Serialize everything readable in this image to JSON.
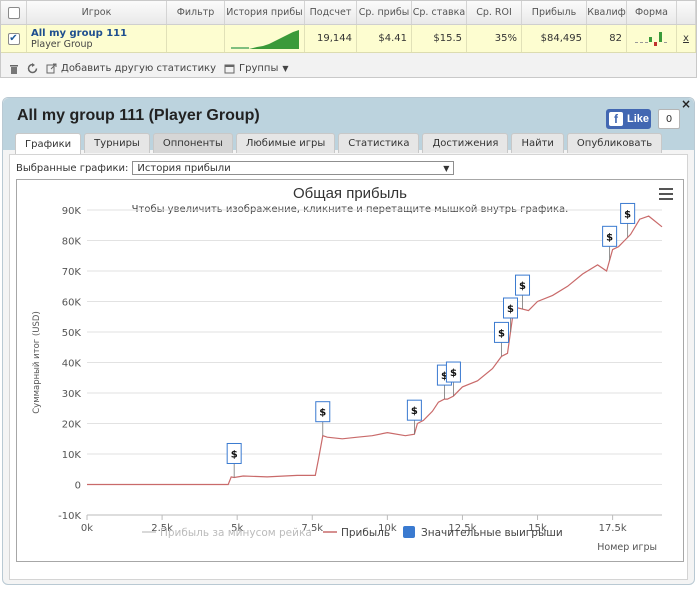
{
  "table": {
    "headers": [
      "Игрок",
      "Фильтр",
      "История прибы",
      "Подсчет",
      "Ср. прибы",
      "Ср. ставка",
      "Ср. ROI",
      "Прибыль",
      "Квалиф",
      "Форма"
    ],
    "row": {
      "player_name": "All my group 111",
      "player_group": "Player Group",
      "filter": "",
      "count": "19,144",
      "avg_profit": "$4.41",
      "avg_stake": "$15.5",
      "avg_roi": "35%",
      "profit": "$84,495",
      "qualif": "82",
      "remove": "x"
    },
    "toolbar": {
      "add_stat": "Добавить другую статистику",
      "groups": "Группы"
    }
  },
  "panel": {
    "title": "All my group 111 (Player Group)",
    "like_label": "Like",
    "like_count": "0",
    "close": "×",
    "tabs": [
      "Графики",
      "Турниры",
      "Оппоненты",
      "Любимые игры",
      "Статистика",
      "Достижения",
      "Найти",
      "Опубликовать"
    ],
    "active_tab": "Графики",
    "select_label": "Выбранные графики:",
    "select_value": "История прибыли"
  },
  "chart_data": {
    "type": "line",
    "title": "Общая прибыль",
    "subtitle": "Чтобы увеличить изображение, кликните и перетащите мышкой внутрь графика.",
    "xlabel": "Номер игры",
    "ylabel": "Суммарный итог (USD)",
    "x_ticks": [
      "0k",
      "2.5k",
      "5k",
      "7.5k",
      "10k",
      "12.5k",
      "15k",
      "17.5k"
    ],
    "y_ticks": [
      "-10K",
      "0",
      "10K",
      "20K",
      "30K",
      "40K",
      "50K",
      "60K",
      "70K",
      "80K",
      "90K"
    ],
    "xlim": [
      0,
      19144
    ],
    "ylim": [
      -10000,
      90000
    ],
    "series": [
      {
        "name": "Прибыль",
        "color": "#c96a6a",
        "x": [
          0,
          1000,
          2000,
          3000,
          4000,
          4700,
          4800,
          4900,
          5200,
          6000,
          7000,
          7600,
          7700,
          7850,
          8000,
          8500,
          9000,
          9500,
          10000,
          10600,
          10900,
          11000,
          11200,
          11500,
          11700,
          11900,
          12000,
          12200,
          12500,
          13000,
          13500,
          13800,
          14000,
          14100,
          14200,
          14300,
          14700,
          15000,
          15500,
          16000,
          16500,
          17000,
          17300,
          17500,
          17700,
          17900,
          18100,
          18400,
          18700,
          19144
        ],
        "y": [
          0,
          0,
          0,
          0,
          0,
          0,
          2500,
          2300,
          2800,
          2500,
          3000,
          3000,
          8000,
          16000,
          15500,
          15000,
          15500,
          16000,
          17000,
          16000,
          16500,
          20000,
          21000,
          24000,
          27000,
          28000,
          28000,
          29000,
          32000,
          34000,
          38000,
          42000,
          43000,
          50000,
          57000,
          58000,
          57000,
          60000,
          62000,
          65000,
          69000,
          72000,
          70000,
          77000,
          78000,
          80000,
          82000,
          87000,
          88000,
          84500
        ]
      }
    ],
    "markers": {
      "name": "Значительные выигрыши",
      "label": "$",
      "x": [
        4900,
        7850,
        10900,
        11900,
        12200,
        13800,
        14100,
        14500,
        17400,
        18000
      ]
    },
    "legend": [
      "Прибыль за минусом рейка",
      "Прибыль",
      "Значительные выигрыши"
    ],
    "legend_colors": [
      "#cccccc",
      "#c96a6a",
      "#3a7ad0"
    ],
    "legend_position": "bottom",
    "grid": "horizontal"
  }
}
